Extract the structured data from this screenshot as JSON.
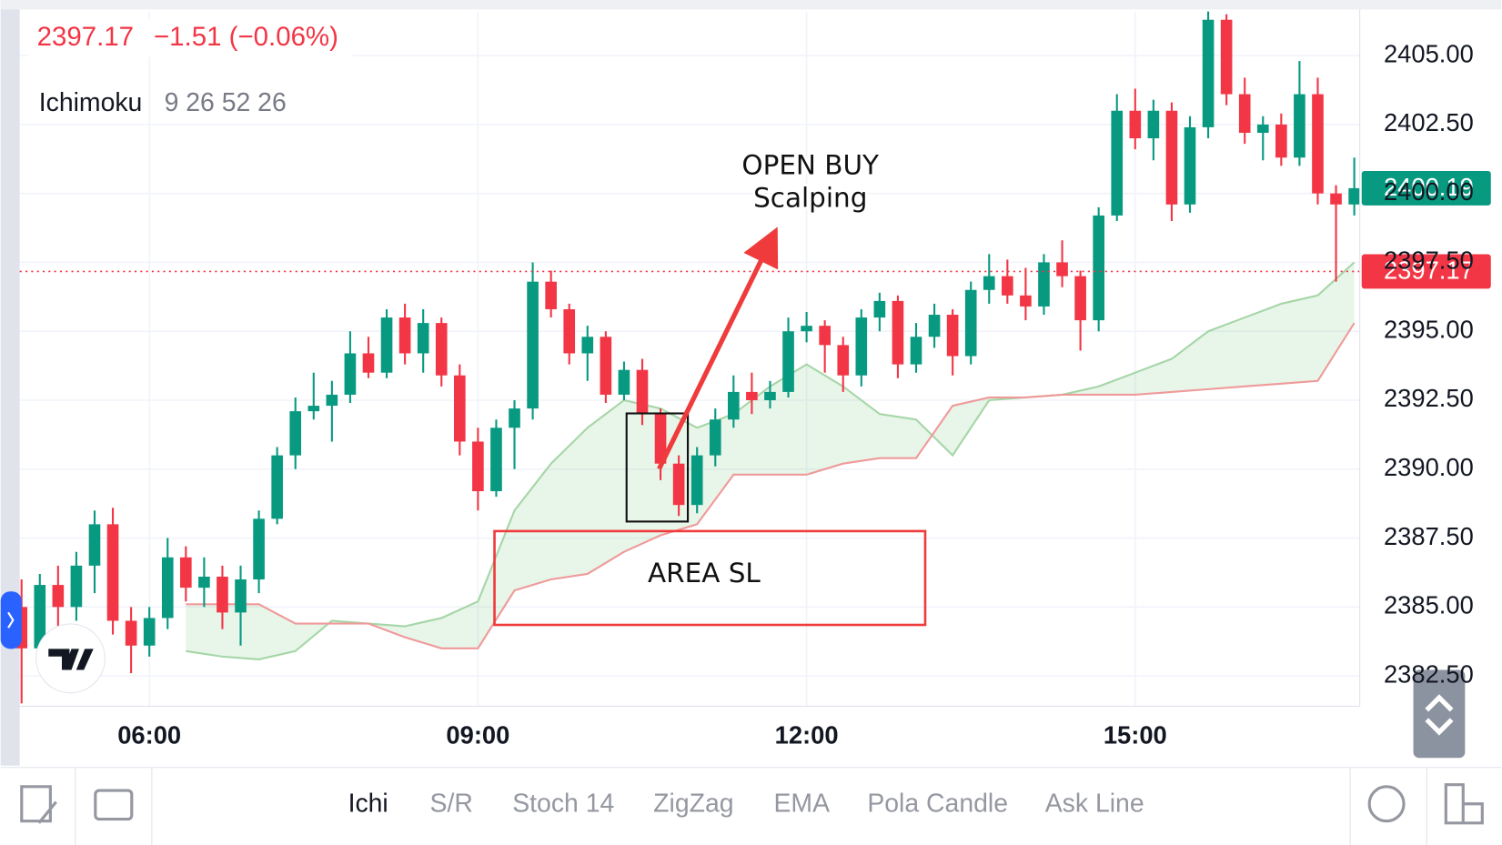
{
  "header": {
    "price": "2397.17",
    "change": "−1.51 (−0.06%)",
    "indicator_name": "Ichimoku",
    "indicator_params": "9 26 52 26"
  },
  "annotations": {
    "open_buy": "OPEN BUY",
    "scalping": "Scalping",
    "area_sl": "AREA SL"
  },
  "toolbar": {
    "items": [
      "Ichi",
      "S/R",
      "Stoch 14",
      "ZigZag",
      "EMA",
      "Pola Candle",
      "Ask Line"
    ],
    "active": 0
  },
  "chart_data": {
    "type": "candlestick",
    "x": [
      "04:50",
      "05:00",
      "05:10",
      "05:20",
      "05:30",
      "05:40",
      "05:50",
      "06:00",
      "06:10",
      "06:20",
      "06:30",
      "06:40",
      "06:50",
      "07:00",
      "07:10",
      "07:20",
      "07:30",
      "07:40",
      "07:50",
      "08:00",
      "08:10",
      "08:20",
      "08:30",
      "08:40",
      "08:50",
      "09:00",
      "09:10",
      "09:20",
      "09:30",
      "09:40",
      "09:50",
      "10:00",
      "10:10",
      "10:20",
      "10:30",
      "10:40",
      "10:50",
      "11:00",
      "11:10",
      "11:20",
      "11:30",
      "11:40",
      "11:50",
      "12:00",
      "12:10",
      "12:20",
      "12:30",
      "12:40",
      "12:50",
      "13:00",
      "13:10",
      "13:20",
      "13:30",
      "13:40",
      "13:50",
      "14:00",
      "14:10",
      "14:20",
      "14:30",
      "14:40",
      "14:50",
      "15:00",
      "15:10",
      "15:20",
      "15:30",
      "15:40",
      "15:50",
      "16:00",
      "16:10",
      "16:20",
      "16:30",
      "16:40",
      "16:50",
      "17:00"
    ],
    "open": [
      2385,
      2383.5,
      2385.8,
      2385,
      2386.5,
      2388,
      2384.5,
      2383.6,
      2384.6,
      2386.8,
      2385.7,
      2386.1,
      2384.8,
      2386,
      2388.2,
      2390.5,
      2392.1,
      2392.3,
      2392.7,
      2394.2,
      2393.5,
      2395.5,
      2394.2,
      2395.3,
      2393.4,
      2391,
      2389.2,
      2391.5,
      2392.2,
      2396.8,
      2395.8,
      2394.2,
      2394.8,
      2392.7,
      2393.6,
      2392,
      2390.2,
      2388.7,
      2390.5,
      2391.8,
      2392.8,
      2392.5,
      2392.8,
      2395,
      2395.2,
      2394.5,
      2393.4,
      2395.5,
      2396.1,
      2393.8,
      2394.8,
      2395.6,
      2394.1,
      2396.5,
      2397,
      2396.3,
      2395.9,
      2397.5,
      2397,
      2395.4,
      2399.2,
      2403,
      2402,
      2403,
      2399.6,
      2402.4,
      2406.3,
      2403.6,
      2402.2,
      2402.5,
      2401.3,
      2403.6,
      2400,
      2399.6
    ],
    "high": [
      2386,
      2386.2,
      2386.5,
      2387,
      2388.5,
      2388.6,
      2385,
      2385,
      2387.5,
      2387.2,
      2386.8,
      2386.5,
      2386.5,
      2388.5,
      2390.8,
      2392.6,
      2393.5,
      2393.2,
      2395,
      2394.8,
      2395.8,
      2396,
      2395.8,
      2395.5,
      2393.8,
      2391.5,
      2391.8,
      2392.5,
      2397.5,
      2397.2,
      2396,
      2395.2,
      2395,
      2393.9,
      2394,
      2392.2,
      2390.5,
      2390.8,
      2392.2,
      2393.4,
      2393.5,
      2393.2,
      2395.5,
      2395.7,
      2395.4,
      2394.8,
      2395.8,
      2396.4,
      2396.3,
      2395.3,
      2396,
      2395.8,
      2396.8,
      2397.8,
      2397.6,
      2397.3,
      2397.8,
      2398.3,
      2397.2,
      2399.5,
      2403.6,
      2403.8,
      2403.4,
      2403.3,
      2402.8,
      2406.6,
      2406.5,
      2404.2,
      2402.8,
      2402.9,
      2404.8,
      2404.2,
      2400.3,
      2401.3
    ],
    "low": [
      2381.5,
      2383,
      2384.3,
      2384.5,
      2385.5,
      2384,
      2382.6,
      2383.2,
      2384.2,
      2385.2,
      2385,
      2384.2,
      2383.6,
      2385.5,
      2388,
      2390,
      2391.8,
      2391,
      2392.4,
      2393.3,
      2393.3,
      2393.8,
      2393.5,
      2393,
      2390.5,
      2388.5,
      2389,
      2390,
      2391.8,
      2395.5,
      2393.8,
      2393.2,
      2392.4,
      2392.5,
      2391.6,
      2389.6,
      2388.3,
      2388.4,
      2390.1,
      2391.5,
      2392,
      2392.2,
      2392.6,
      2394.6,
      2393.5,
      2392.8,
      2393,
      2395,
      2393.3,
      2393.5,
      2394.4,
      2393.4,
      2393.8,
      2396,
      2396,
      2395.4,
      2395.6,
      2396.6,
      2394.3,
      2395,
      2399,
      2401.6,
      2401.2,
      2399,
      2399.3,
      2402,
      2403.2,
      2401.8,
      2401.2,
      2401,
      2401,
      2399.6,
      2396.8,
      2399.2
    ],
    "close": [
      2383.5,
      2385.8,
      2385,
      2386.5,
      2388,
      2384.5,
      2383.6,
      2384.6,
      2386.8,
      2385.7,
      2386.1,
      2384.8,
      2386,
      2388.2,
      2390.5,
      2392.1,
      2392.3,
      2392.7,
      2394.2,
      2393.5,
      2395.5,
      2394.2,
      2395.3,
      2393.4,
      2391,
      2389.2,
      2391.5,
      2392.2,
      2396.8,
      2395.8,
      2394.2,
      2394.8,
      2392.7,
      2393.6,
      2392,
      2390.2,
      2388.7,
      2390.5,
      2391.8,
      2392.8,
      2392.5,
      2392.8,
      2395,
      2395.2,
      2394.5,
      2393.4,
      2395.5,
      2396.1,
      2393.8,
      2394.8,
      2395.6,
      2394.1,
      2396.5,
      2397,
      2396.3,
      2395.9,
      2397.5,
      2397,
      2395.4,
      2399.2,
      2403,
      2402,
      2403,
      2399.6,
      2402.4,
      2406.3,
      2403.6,
      2402.2,
      2402.5,
      2401.3,
      2403.6,
      2400,
      2399.6,
      2400.19
    ],
    "up_color": "#089981",
    "down_color": "#f23645",
    "ichimoku": {
      "x": [
        "06:20",
        "06:40",
        "07:00",
        "07:20",
        "07:40",
        "08:00",
        "08:20",
        "08:40",
        "09:00",
        "09:20",
        "09:40",
        "10:00",
        "10:20",
        "10:40",
        "11:00",
        "11:20",
        "11:40",
        "12:00",
        "12:20",
        "12:40",
        "13:00",
        "13:20",
        "13:40",
        "14:00",
        "14:20",
        "14:40",
        "15:00",
        "15:20",
        "15:40",
        "16:00",
        "16:20",
        "16:40",
        "17:00"
      ],
      "span_a": [
        2383.4,
        2383.2,
        2383.1,
        2383.4,
        2384.5,
        2384.4,
        2384.3,
        2384.6,
        2385.2,
        2388.5,
        2390.2,
        2391.5,
        2392.5,
        2392.2,
        2391.5,
        2392,
        2393,
        2393.8,
        2393,
        2392,
        2391.8,
        2390.5,
        2392.5,
        2392.6,
        2392.7,
        2393,
        2393.5,
        2394,
        2395,
        2395.5,
        2396,
        2396.3,
        2397.5
      ],
      "span_b": [
        2385.1,
        2385.1,
        2385.1,
        2384.4,
        2384.4,
        2384.4,
        2383.9,
        2383.5,
        2383.5,
        2385.6,
        2386,
        2386.2,
        2387,
        2387.6,
        2388,
        2389.8,
        2389.8,
        2389.8,
        2390.2,
        2390.4,
        2390.4,
        2392.3,
        2392.6,
        2392.6,
        2392.7,
        2392.7,
        2392.7,
        2392.8,
        2392.9,
        2393,
        2393.1,
        2393.2,
        2395.3
      ],
      "span_a_color": "#a5d6a7",
      "span_b_color": "#ef9a9a"
    },
    "price_lines": [
      {
        "value": 2400.19,
        "color": "#089981",
        "dotted": false
      },
      {
        "value": 2397.17,
        "color": "#f23645",
        "dotted": true
      }
    ],
    "xlim": [
      "04:49",
      "17:03"
    ],
    "xticks": [
      "06:00",
      "09:00",
      "12:00",
      "15:00"
    ],
    "ylim": [
      2381.4,
      2406.6
    ],
    "yticks": [
      {
        "value": 2382.5,
        "label": "2382.50"
      },
      {
        "value": 2385,
        "label": "2385.00"
      },
      {
        "value": 2387.5,
        "label": "2387.50"
      },
      {
        "value": 2390,
        "label": "2390.00"
      },
      {
        "value": 2392.5,
        "label": "2392.50"
      },
      {
        "value": 2395,
        "label": "2395.00"
      },
      {
        "value": 2397.5,
        "label": "2397.50"
      },
      {
        "value": 2400,
        "label": "2400.00"
      },
      {
        "value": 2402.5,
        "label": "2402.50"
      },
      {
        "value": 2405,
        "label": "2405.00"
      }
    ],
    "grid": true
  }
}
